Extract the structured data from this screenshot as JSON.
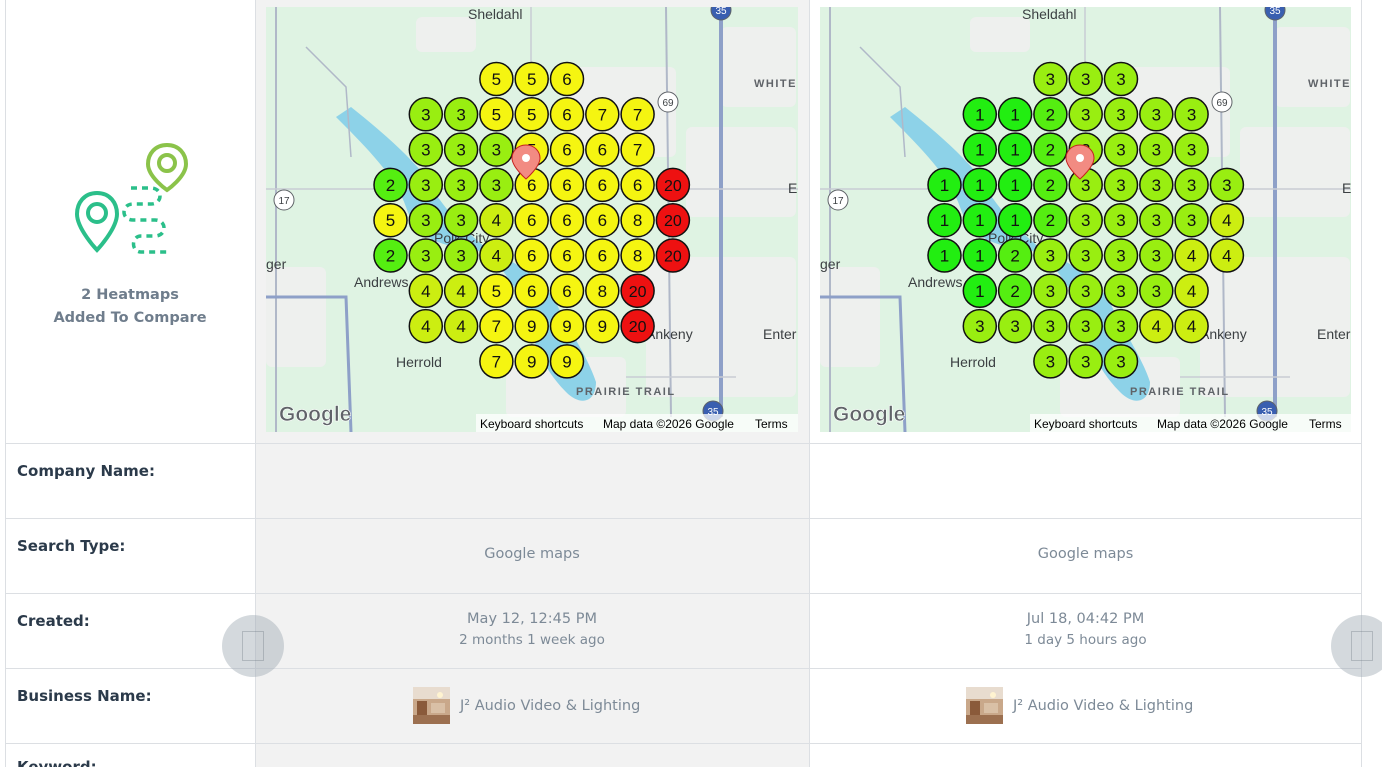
{
  "summary": {
    "heatmaps_line1": "2 Heatmaps",
    "heatmaps_line2": "Added To Compare"
  },
  "rows": {
    "company_name": "Company Name:",
    "search_type": "Search Type:",
    "created": "Created:",
    "business_name": "Business Name:",
    "keyword": "Keyword:"
  },
  "maps": [
    {
      "labels": {
        "town_north": "Sheldahl",
        "town_east": "WHITE",
        "town_west": "ger",
        "town_sw": "Andrews",
        "town_city": "Polk City",
        "town_south": "Herrold",
        "trail": "PRAIRIE TRAIL",
        "ankeny": "Ankeny",
        "enter": "Enter",
        "e": "E",
        "route_17": "17",
        "route_69": "69",
        "route_35": "35",
        "google": "Google",
        "keyboard": "Keyboard shortcuts",
        "mapdata": "Map data ©2026 Google",
        "terms": "Terms"
      },
      "rows": [
        [
          null,
          null,
          null,
          5,
          5,
          6,
          null,
          null,
          null
        ],
        [
          null,
          3,
          3,
          5,
          5,
          6,
          7,
          7,
          null
        ],
        [
          null,
          3,
          3,
          3,
          5,
          6,
          6,
          7,
          null
        ],
        [
          2,
          3,
          3,
          3,
          6,
          6,
          6,
          6,
          20
        ],
        [
          5,
          3,
          3,
          4,
          6,
          6,
          6,
          8,
          20
        ],
        [
          2,
          3,
          3,
          4,
          6,
          6,
          6,
          8,
          20
        ],
        [
          null,
          4,
          4,
          5,
          6,
          6,
          8,
          20,
          null
        ],
        [
          null,
          4,
          4,
          7,
          9,
          9,
          9,
          20,
          null
        ],
        [
          null,
          null,
          null,
          7,
          9,
          9,
          null,
          null,
          null
        ]
      ]
    },
    {
      "labels": {
        "town_north": "Sheldahl",
        "town_east": "WHITE",
        "town_west": "ger",
        "town_sw": "Andrews",
        "town_city": "Polk City",
        "town_south": "Herrold",
        "trail": "PRAIRIE TRAIL",
        "ankeny": "Ankeny",
        "enter": "Enter",
        "e": "E",
        "route_17": "17",
        "route_69": "69",
        "route_35": "35",
        "google": "Google",
        "keyboard": "Keyboard shortcuts",
        "mapdata": "Map data ©2026 Google",
        "terms": "Terms"
      },
      "rows": [
        [
          null,
          null,
          null,
          3,
          3,
          3,
          null,
          null,
          null
        ],
        [
          null,
          1,
          1,
          2,
          3,
          3,
          3,
          3,
          null
        ],
        [
          null,
          1,
          1,
          2,
          3,
          3,
          3,
          3,
          null
        ],
        [
          1,
          1,
          1,
          2,
          3,
          3,
          3,
          3,
          3
        ],
        [
          1,
          1,
          1,
          2,
          3,
          3,
          3,
          3,
          4
        ],
        [
          1,
          1,
          2,
          3,
          3,
          3,
          3,
          4,
          4
        ],
        [
          null,
          1,
          2,
          3,
          3,
          3,
          3,
          4,
          null
        ],
        [
          null,
          3,
          3,
          3,
          3,
          3,
          4,
          4,
          null
        ],
        [
          null,
          null,
          null,
          3,
          3,
          3,
          null,
          null,
          null
        ]
      ]
    }
  ],
  "columns": [
    {
      "company_name": "",
      "search_type": "Google maps",
      "created_date": "May 12, 12:45 PM",
      "created_ago": "2 months 1 week ago",
      "business_name": "J² Audio Video & Lighting"
    },
    {
      "company_name": "",
      "search_type": "Google maps",
      "created_date": "Jul 18, 04:42 PM",
      "created_ago": "1 day 5 hours ago",
      "business_name": "J² Audio Video & Lighting"
    }
  ],
  "colors": {
    "rank_1": "#22ee11",
    "rank_2": "#55ee11",
    "rank_3": "#99ee11",
    "rank_4": "#ccee11",
    "rank_5_9": "#f5f511",
    "rank_20": "#ee1111",
    "accent_green": "#8bc34a",
    "accent_teal": "#2bbf8a"
  }
}
